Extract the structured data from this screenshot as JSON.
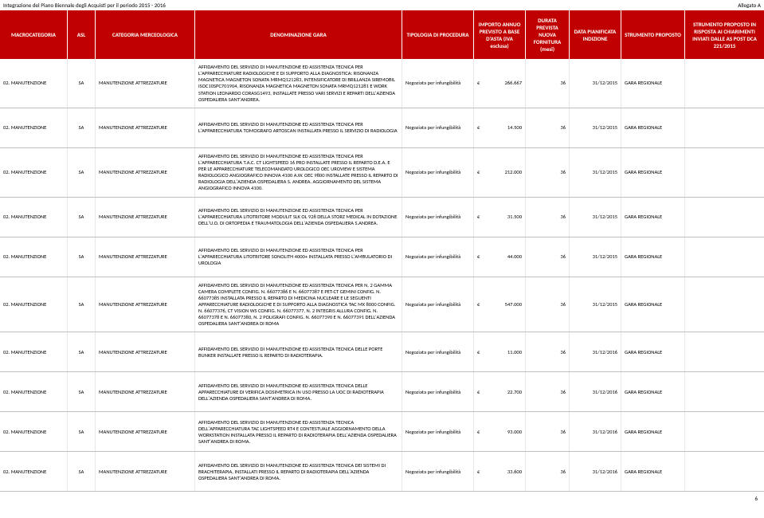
{
  "top": {
    "left": "Integrazione del Piano Biennale degli Acquisti per il periodo 2015 - 2016",
    "right": "Allegato A"
  },
  "headers": {
    "macro": "MACROCATEGORIA",
    "asl": "ASL",
    "merc": "CATEGORIA MERCEOLOGICA",
    "denom": "DENOMINAZIONE GARA",
    "tipo": "TIPOLOGIA DI PROCEDURA",
    "importo": "IMPORTO ANNUO PREVISTO A BASE D'ASTA (IVA esclusa)",
    "durata": "DURATA PREVISTA NUOVA FORNITURA (mesi)",
    "data": "DATA PIANIFICATA INDIZIONE",
    "strprop": "STRUMENTO PROPOSTO",
    "strresp": "STRUMENTO PROPOSTO IN RISPOSTA AI CHIARIMENTI INVIATI DALLE AS POST DCA 221/2015"
  },
  "common": {
    "macro": "02. MANUTENZIONE",
    "asl": "SA",
    "merc": "MANUTENZIONE ATTREZZATURE",
    "tipo": "Negoziata per infungibilità",
    "curr": "€"
  },
  "rows": [
    {
      "denom": "AFFIDAMENTO DEL SERVIZIO DI MANUTENZIONE ED ASSISTENZA TECNICA PER L'APPARECCHIATURE RADIOLOGICHE E DI SUPPORTO ALLA DIAGNOSTICA: RISONANZA MAGNETICA MAGNETON SONATA MRMQ121283, INTENSIFICATORE DI BRILLANZA SIREMOBIL ISOC10SPC701904, RISONANZA MAGNETICA MAGNETON SONATA MRMQ121281 E WORK STATION LEONARDO CORASG1493, INSTALLATE PRESSO VARI SERVIZI E REPARTI DELL'AZIENDA OSPEDALIERA SANT'ANDREA.",
      "importo": "266.667",
      "durata": "36",
      "data": "31/12/2015",
      "strprop": "GARA REGIONALE"
    },
    {
      "denom": "AFFIDAMENTO DEL SERVIZIO DI MANUTENZIONE ED ASSISTENZA TECNICA PER L'APPARECCHIATURA TOMOGRAFO ARTOSCAN INSTALLATA PRESSO IL SERVIZIO DI RADIOLOGIA",
      "importo": "14.500",
      "durata": "36",
      "data": "31/12/2015",
      "strprop": "GARA REGIONALE"
    },
    {
      "denom": "AFFIDAMENTO DEL SERVIZIO DI MANUTENZIONE ED ASSISTENZA TECNICA PER L'APPARECCHIATURA T.A.C. CT LIGHTSPEED 16 PRO INSTALLATE PRESSO IL REPARTO D.E.A. E PER LE APPARECCHIATURE TELECOMANDATO UROLOGICO OEC UROVIEW E SISTEMA RADIOLOGICO ANGIOGRAFICO INNOVA 4100 A.W. OEC 9800 INSTALLATE PRESSO IL REPARTO DI RADIOLOGIA DELL'AZIENDA OSPEDALIERA S. ANDREA. AGGIORNAMENTO DEL SISTEMA ANGIOGRAFICO INNOVA 4100.",
      "importo": "212.000",
      "durata": "36",
      "data": "31/12/2015",
      "strprop": "GARA REGIONALE"
    },
    {
      "denom": "AFFIDAMENTO DEL SERVIZIO DI MANUTENZIONE ED ASSISTENZA TECNICA PER L'APPARECCHIATURA LITOTRITORE MODULIT SLK OL 928 DELLA STORZ MEDICAL IN DOTAZIONE DELL'U.O. DI ORTOPEDIA E TRAUMATOLOGIA DELL'AZIENDA OSPEDALIERA S.ANDREA.",
      "importo": "31.500",
      "durata": "36",
      "data": "31/12/2015",
      "strprop": "GARA REGIONALE"
    },
    {
      "denom": "AFFIDAMENTO DEL SERVIZIO DI MANUTENZIONE ED ASSISTENZA TECNICA PER L'APPARECCHIATURA  LITOTRITORE SONOLITH 4000+ INSTALLATA PRESSO L'AMBULATORIO DI UROLOGIA",
      "importo": "44.000",
      "durata": "36",
      "data": "31/12/2015",
      "strprop": "GARA REGIONALE"
    },
    {
      "denom": "AFFIDAMENTO DEL SERVIZIO DI MANUTENZIONE ED ASSISTENZA TECNICA PER  N. 2 GAMMA CAMERA COMPLETE CONFIG. N. 66077386 E N. 66077387 E PET-CT GEMINI CONFIG. N. 66077385 INSTALLATA PRESSO IL REPARTO DI MEDICINA NUCLEARE E LE SEGUENTI APPARECCHIATURE RADIOLOGICHE E DI SUPPORTO ALLA DIAGNOSTICA TAC MX 8000 CONFIG. N. 66077376, CT VISION WS CONFIG. N. 66077377, N. 2  INTEGRIS ALLURA CONFIG. N. 66077378 E N. 66077380, N. 2 POLIGRAFI CONFIG. N. 66077390 E N. 66077391 DELL'AZIENDA OSPEDALIERA SANT'ANDREA DI ROMA",
      "importo": "547.000",
      "durata": "36",
      "data": "31/12/2015",
      "strprop": "GARA REGIONALE"
    },
    {
      "denom": "AFFIDAMENTO DEL SERVIZIO DI MANUTENZIONE ED ASSISTENZA TECNICA DELLE PORTE BUNKER INSTALLATE PRESSO IL REPARTO DI RADIOTERAPIA.",
      "importo": "11.000",
      "durata": "36",
      "data": "31/12/2016",
      "strprop": "GARA REGIONALE"
    },
    {
      "denom": "AFFIDAMENTO DEL SERVIZIO DI MANUTENZIONE ED ASSISTENZA TECNICA DELLE APPARECCHIATURE DI VERIFICA DOSIMETRICA IN USO PRESSO LA UOC DI RADIOTERAPIA DELL'AZIENDA OSPEDALIERA SANT'ANDREA DI ROMA.",
      "importo": "22.700",
      "durata": "36",
      "data": "31/12/2016",
      "strprop": "GARA REGIONALE"
    },
    {
      "denom": "AFFIDAMENTO DEL SERVIZIO DI MANUTENZIONE ED ASSISTENZA TECNICA DELL'APPARECCHIATURA TAC LIGHTSPEED RT4 E CONTESTUALE AGGIORNAMENTO DELLA WORKSTATION INSTALLATA PRESSO IL REPARTO DI RADIOTERAPIA DELL'AZIENDA OSPEDALIERA SANT'ANDREA DI ROMA.",
      "importo": "93.000",
      "durata": "36",
      "data": "31/12/2016",
      "strprop": "GARA REGIONALE"
    },
    {
      "denom": "AFFIDAMENTO DEL SERVIZIO DI MANUTENZIONE ED ASSISTENZA TECNICA DEI SISTEMI DI BRACHITERAPIA, INSTALLATI PRESSO IL REPARTO DI RADIOTERAPIA DELL'AZIENDA OSPEDALIERA SANT'ANDREA DI ROMA.",
      "importo": "33.600",
      "durata": "36",
      "data": "31/12/2016",
      "strprop": "GARA REGIONALE"
    }
  ],
  "footer": {
    "page": "6"
  }
}
